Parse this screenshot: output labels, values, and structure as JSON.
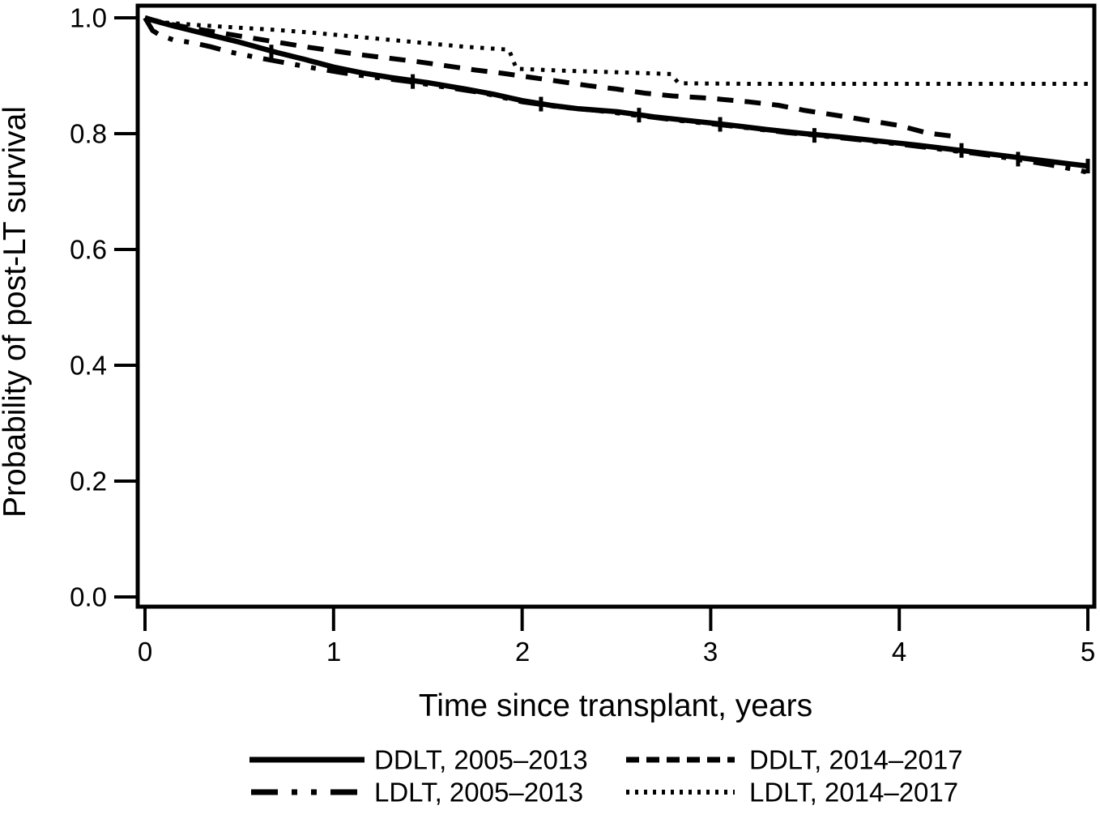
{
  "figure": {
    "background": "#ffffff",
    "line_color": "#000000"
  },
  "chart_data": {
    "type": "line",
    "subtype": "kaplan-meier-survival",
    "title": "",
    "xlabel": "Time since transplant, years",
    "ylabel": "Probability of post-LT survival",
    "xlim": [
      0,
      5
    ],
    "ylim": [
      0.0,
      1.0
    ],
    "grid": false,
    "legend_position": "bottom",
    "x_ticks": [
      0,
      1,
      2,
      3,
      4,
      5
    ],
    "x_tick_labels": [
      "0",
      "1",
      "2",
      "3",
      "4",
      "5"
    ],
    "y_ticks": [
      0.0,
      0.2,
      0.4,
      0.6,
      0.8,
      1.0
    ],
    "y_tick_labels": [
      "0.0",
      "0.2",
      "0.4",
      "0.6",
      "0.8",
      "1.0"
    ],
    "series": [
      {
        "name": "DDLT, 2005–2013",
        "line_style": "solid",
        "points": [
          [
            0,
            1.0
          ],
          [
            0.05,
            0.995
          ],
          [
            0.15,
            0.986
          ],
          [
            0.3,
            0.974
          ],
          [
            0.5,
            0.958
          ],
          [
            0.7,
            0.94
          ],
          [
            0.85,
            0.928
          ],
          [
            1.0,
            0.915
          ],
          [
            1.15,
            0.905
          ],
          [
            1.3,
            0.897
          ],
          [
            1.5,
            0.888
          ],
          [
            1.7,
            0.877
          ],
          [
            1.85,
            0.868
          ],
          [
            2.0,
            0.857
          ],
          [
            2.15,
            0.849
          ],
          [
            2.3,
            0.843
          ],
          [
            2.5,
            0.838
          ],
          [
            2.7,
            0.829
          ],
          [
            2.9,
            0.822
          ],
          [
            3.1,
            0.815
          ],
          [
            3.3,
            0.807
          ],
          [
            3.5,
            0.8
          ],
          [
            3.7,
            0.794
          ],
          [
            3.9,
            0.787
          ],
          [
            4.1,
            0.78
          ],
          [
            4.3,
            0.772
          ],
          [
            4.5,
            0.764
          ],
          [
            4.7,
            0.756
          ],
          [
            4.9,
            0.748
          ],
          [
            5.0,
            0.744
          ]
        ],
        "censor_ticks": [
          [
            0.67,
            0.941
          ],
          [
            1.42,
            0.89
          ],
          [
            2.62,
            0.832
          ],
          [
            3.05,
            0.816
          ],
          [
            4.33,
            0.771
          ],
          [
            5.0,
            0.744
          ]
        ]
      },
      {
        "name": "DDLT, 2014–2017",
        "line_style": "dashed",
        "points": [
          [
            0,
            1.0
          ],
          [
            0.1,
            0.991
          ],
          [
            0.25,
            0.982
          ],
          [
            0.4,
            0.974
          ],
          [
            0.55,
            0.966
          ],
          [
            0.7,
            0.958
          ],
          [
            0.85,
            0.95
          ],
          [
            1.0,
            0.943
          ],
          [
            1.15,
            0.936
          ],
          [
            1.3,
            0.93
          ],
          [
            1.45,
            0.924
          ],
          [
            1.6,
            0.917
          ],
          [
            1.75,
            0.91
          ],
          [
            1.9,
            0.904
          ],
          [
            2.05,
            0.897
          ],
          [
            2.2,
            0.89
          ],
          [
            2.35,
            0.883
          ],
          [
            2.5,
            0.877
          ],
          [
            2.65,
            0.87
          ],
          [
            2.8,
            0.865
          ],
          [
            3.0,
            0.861
          ],
          [
            3.2,
            0.855
          ],
          [
            3.36,
            0.849
          ],
          [
            3.5,
            0.84
          ],
          [
            3.7,
            0.83
          ],
          [
            3.85,
            0.822
          ],
          [
            4.0,
            0.814
          ],
          [
            4.15,
            0.801
          ],
          [
            4.3,
            0.795
          ]
        ],
        "censor_ticks": []
      },
      {
        "name": "LDLT, 2005–2013",
        "line_style": "dash-dot-dot",
        "points": [
          [
            0,
            1.0
          ],
          [
            0.04,
            0.978
          ],
          [
            0.08,
            0.97
          ],
          [
            0.15,
            0.962
          ],
          [
            0.25,
            0.957
          ],
          [
            0.35,
            0.95
          ],
          [
            0.45,
            0.941
          ],
          [
            0.6,
            0.931
          ],
          [
            0.75,
            0.922
          ],
          [
            0.9,
            0.913
          ],
          [
            1.05,
            0.905
          ],
          [
            1.2,
            0.898
          ],
          [
            1.4,
            0.89
          ],
          [
            1.6,
            0.88
          ],
          [
            1.8,
            0.87
          ],
          [
            2.0,
            0.855
          ],
          [
            2.2,
            0.846
          ],
          [
            2.4,
            0.84
          ],
          [
            2.6,
            0.832
          ],
          [
            2.8,
            0.824
          ],
          [
            3.0,
            0.817
          ],
          [
            3.2,
            0.81
          ],
          [
            3.4,
            0.802
          ],
          [
            3.6,
            0.796
          ],
          [
            3.8,
            0.789
          ],
          [
            4.0,
            0.782
          ],
          [
            4.2,
            0.774
          ],
          [
            4.4,
            0.766
          ],
          [
            4.6,
            0.757
          ],
          [
            4.8,
            0.746
          ],
          [
            4.95,
            0.737
          ],
          [
            5.0,
            0.733
          ]
        ],
        "censor_ticks": [
          [
            2.1,
            0.851
          ],
          [
            3.55,
            0.797
          ],
          [
            4.63,
            0.756
          ]
        ]
      },
      {
        "name": "LDLT, 2014–2017",
        "line_style": "dotted",
        "points": [
          [
            0,
            1.0
          ],
          [
            0.1,
            0.992
          ],
          [
            0.3,
            0.987
          ],
          [
            0.5,
            0.983
          ],
          [
            0.7,
            0.979
          ],
          [
            0.9,
            0.974
          ],
          [
            1.1,
            0.968
          ],
          [
            1.3,
            0.962
          ],
          [
            1.5,
            0.956
          ],
          [
            1.7,
            0.95
          ],
          [
            1.93,
            0.945
          ],
          [
            1.97,
            0.912
          ],
          [
            2.2,
            0.909
          ],
          [
            2.4,
            0.907
          ],
          [
            2.6,
            0.905
          ],
          [
            2.79,
            0.903
          ],
          [
            2.83,
            0.887
          ],
          [
            3.2,
            0.886
          ],
          [
            5.03,
            0.886
          ]
        ],
        "censor_ticks": []
      }
    ]
  }
}
